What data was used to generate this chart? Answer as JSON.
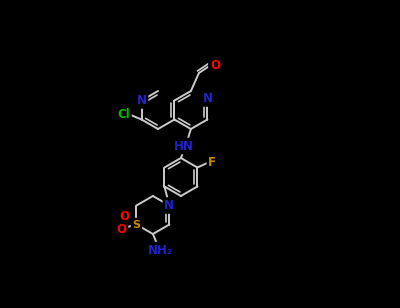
{
  "bg_color": "#000000",
  "fig_width": 4.0,
  "fig_height": 3.08,
  "dpi": 100,
  "colors": {
    "O": "#FF0000",
    "N": "#2222CC",
    "Cl": "#00BB00",
    "F": "#CC8800",
    "S": "#CC8800",
    "C": "#DDDDDD",
    "bond": "#CCCCCC"
  },
  "bond_lw": 1.4,
  "font_size": 8.5
}
